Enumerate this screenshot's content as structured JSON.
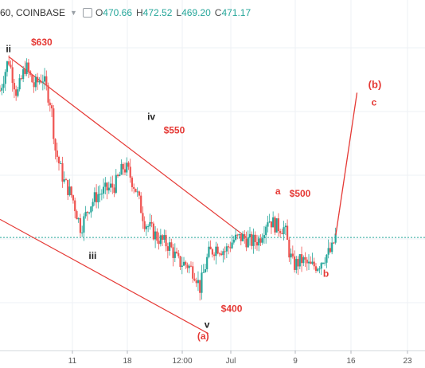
{
  "header": {
    "symbol": "60, COINBASE",
    "ohlc": [
      {
        "key": "O",
        "value": "470.66"
      },
      {
        "key": "H",
        "value": "472.52"
      },
      {
        "key": "L",
        "value": "469.20"
      },
      {
        "key": "C",
        "value": "471.17"
      }
    ]
  },
  "chart_data": {
    "type": "candlestick",
    "x_ticks": [
      "11",
      "18",
      "12:00",
      "Jul",
      "9",
      "16",
      "23"
    ],
    "horizontal_line": 470,
    "price_path": [
      {
        "t": 0,
        "p": 600
      },
      {
        "t": 2,
        "p": 628
      },
      {
        "t": 4,
        "p": 596
      },
      {
        "t": 6,
        "p": 622
      },
      {
        "t": 8,
        "p": 604
      },
      {
        "t": 10,
        "p": 612
      },
      {
        "t": 12,
        "p": 588
      },
      {
        "t": 13,
        "p": 548
      },
      {
        "t": 15,
        "p": 520
      },
      {
        "t": 17,
        "p": 506
      },
      {
        "t": 19,
        "p": 478
      },
      {
        "t": 21,
        "p": 498
      },
      {
        "t": 23,
        "p": 508
      },
      {
        "t": 25,
        "p": 512
      },
      {
        "t": 27,
        "p": 516
      },
      {
        "t": 29,
        "p": 532
      },
      {
        "t": 30,
        "p": 530
      },
      {
        "t": 32,
        "p": 512
      },
      {
        "t": 34,
        "p": 484
      },
      {
        "t": 37,
        "p": 470
      },
      {
        "t": 40,
        "p": 462
      },
      {
        "t": 42,
        "p": 448
      },
      {
        "t": 44,
        "p": 446
      },
      {
        "t": 46,
        "p": 438
      },
      {
        "t": 47,
        "p": 425
      },
      {
        "t": 49,
        "p": 455
      },
      {
        "t": 51,
        "p": 462
      },
      {
        "t": 53,
        "p": 458
      },
      {
        "t": 55,
        "p": 468
      },
      {
        "t": 57,
        "p": 470
      },
      {
        "t": 59,
        "p": 466
      },
      {
        "t": 61,
        "p": 468
      },
      {
        "t": 63,
        "p": 487
      },
      {
        "t": 65,
        "p": 480
      },
      {
        "t": 67,
        "p": 478
      },
      {
        "t": 68,
        "p": 458
      },
      {
        "t": 69,
        "p": 445
      },
      {
        "t": 71,
        "p": 450
      },
      {
        "t": 73,
        "p": 444
      },
      {
        "t": 75,
        "p": 446
      },
      {
        "t": 76,
        "p": 452
      },
      {
        "t": 78,
        "p": 458
      },
      {
        "t": 79,
        "p": 472
      }
    ],
    "x_domain": [
      0,
      100
    ],
    "y_domain": [
      370,
      680
    ],
    "wave_projection": [
      {
        "t": 79,
        "p": 472
      },
      {
        "t": 84,
        "p": 598
      }
    ],
    "channel_lines": [
      {
        "from": {
          "t": 2,
          "p": 630
        },
        "to": {
          "t": 58,
          "p": 470
        }
      },
      {
        "from": {
          "t": 0,
          "p": 486
        },
        "to": {
          "t": 49,
          "p": 385
        }
      }
    ],
    "annotations": [
      {
        "text": "ii",
        "t": 2,
        "p": 634,
        "color": "#222222"
      },
      {
        "text": "$630",
        "t": 9.8,
        "p": 640,
        "color": "#e53935"
      },
      {
        "text": "iv",
        "t": 35.6,
        "p": 574,
        "color": "#222222"
      },
      {
        "text": "$550",
        "t": 41,
        "p": 562,
        "color": "#e53935"
      },
      {
        "text": "iii",
        "t": 21.8,
        "p": 451,
        "color": "#222222"
      },
      {
        "text": "$400",
        "t": 54.5,
        "p": 404,
        "color": "#e53935"
      },
      {
        "text": "v",
        "t": 48.7,
        "p": 390,
        "color": "#222222"
      },
      {
        "text": "(a)",
        "t": 47.8,
        "p": 380,
        "color": "#e53935"
      },
      {
        "text": "a",
        "t": 65.4,
        "p": 508,
        "color": "#e53935"
      },
      {
        "text": "$500",
        "t": 70.6,
        "p": 506,
        "color": "#e53935"
      },
      {
        "text": "b",
        "t": 76.7,
        "p": 435,
        "color": "#e53935"
      },
      {
        "text": "(b)",
        "t": 88.2,
        "p": 602,
        "color": "#e53935"
      },
      {
        "text": "c",
        "t": 88,
        "p": 595,
        "color": "#e53935"
      }
    ],
    "colors": {
      "up": "#26a69a",
      "down": "#ef5350",
      "channel": "#e53935",
      "hline": "#26a69a",
      "grid": "#eef1f4"
    },
    "grid": true
  }
}
